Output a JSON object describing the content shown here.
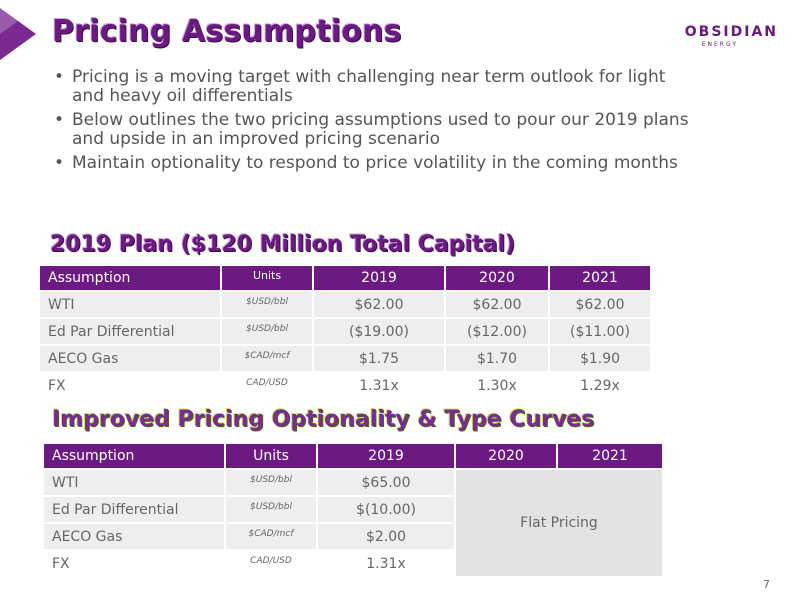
{
  "title": "Pricing Assumptions",
  "logo": {
    "main": "OBSIDIAN",
    "sub": "ENERGY"
  },
  "bullets": [
    "Pricing is a moving target with challenging near term outlook for light and heavy oil differentials",
    "Below outlines the two pricing assumptions used to pour our 2019 plans and upside in an improved pricing scenario",
    "Maintain optionality to respond to price volatility in the coming months"
  ],
  "plan": {
    "heading": "2019 Plan ($120 Million Total Capital)",
    "headers": [
      "Assumption",
      "Units",
      "2019",
      "2020",
      "2021"
    ],
    "rows": [
      {
        "label": "WTI",
        "units": "$USD/bbl",
        "v2019": "$62.00",
        "v2020": "$62.00",
        "v2021": "$62.00"
      },
      {
        "label": "Ed Par Differential",
        "units": "$USD/bbl",
        "v2019": "($19.00)",
        "v2020": "($12.00)",
        "v2021": "($11.00)"
      },
      {
        "label": "AECO Gas",
        "units": "$CAD/mcf",
        "v2019": "$1.75",
        "v2020": "$1.70",
        "v2021": "$1.90"
      },
      {
        "label": "FX",
        "units": "CAD/USD",
        "v2019": "1.31x",
        "v2020": "1.30x",
        "v2021": "1.29x"
      }
    ]
  },
  "improved": {
    "heading": "Improved Pricing Optionality & Type Curves",
    "headers": [
      "Assumption",
      "Units",
      "2019",
      "2020",
      "2021"
    ],
    "rows": [
      {
        "label": "WTI",
        "units": "$USD/bbl",
        "v2019": "$65.00"
      },
      {
        "label": "Ed Par Differential",
        "units": "$USD/bbl",
        "v2019": "$(10.00)"
      },
      {
        "label": "AECO Gas",
        "units": "$CAD/mcf",
        "v2019": "$2.00"
      },
      {
        "label": "FX",
        "units": "CAD/USD",
        "v2019": "1.31x"
      }
    ],
    "flat_label": "Flat Pricing"
  },
  "page_number": "7",
  "colors": {
    "brand_purple": "#6a1a80",
    "cell_gray": "#eeeeee"
  }
}
